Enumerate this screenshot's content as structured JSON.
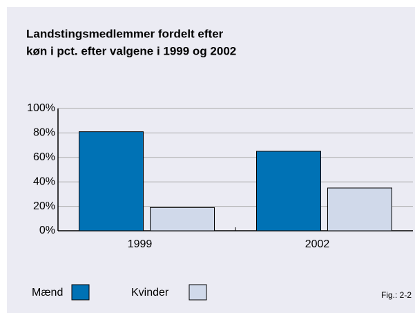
{
  "chart_data": {
    "type": "bar",
    "title": [
      "Landstingsmedlemmer fordelt efter",
      "køn i pct. efter valgene i 1999 og 2002"
    ],
    "categories": [
      "1999",
      "2002"
    ],
    "series": [
      {
        "name": "Mænd",
        "color": "#0072b5",
        "values": [
          81,
          65
        ]
      },
      {
        "name": "Kvinder",
        "color": "#d0d9ea",
        "values": [
          19,
          35
        ]
      }
    ],
    "ylim": [
      0,
      100
    ],
    "yticks": [
      {
        "value": 0,
        "label": "0%"
      },
      {
        "value": 20,
        "label": "20%"
      },
      {
        "value": 40,
        "label": "40%"
      },
      {
        "value": 60,
        "label": "60%"
      },
      {
        "value": 80,
        "label": "80%"
      },
      {
        "value": 100,
        "label": "100%"
      }
    ],
    "grid": true,
    "legend": "bottom",
    "annotation": "Fig.: 2-2"
  }
}
